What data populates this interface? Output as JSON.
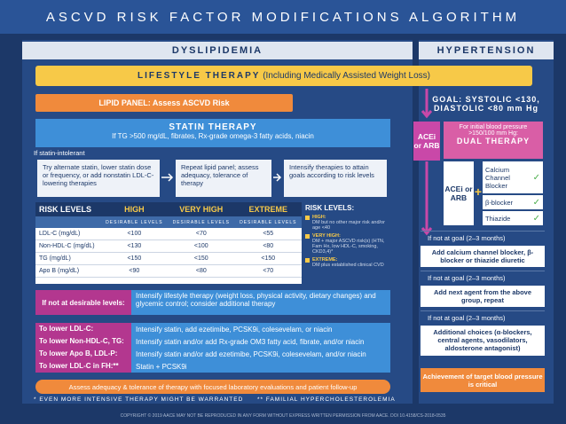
{
  "title": "ASCVD RISK FACTOR MODIFICATIONS ALGORITHM",
  "dyslipidemia": {
    "header": "DYSLIPIDEMIA",
    "lifestyle": {
      "label": "LIFESTYLE THERAPY",
      "note": "(Including Medically Assisted Weight Loss)"
    },
    "lipid_panel": "LIPID PANEL: Assess ASCVD Risk",
    "statin": {
      "label": "STATIN THERAPY",
      "note": "If TG >500 mg/dL, fibrates, Rx-grade omega-3 fatty acids, niacin"
    },
    "intolerant": "If statin-intolerant",
    "steps": [
      "Try alternate statin, lower statin dose or frequency, or add nonstatin LDL-C- lowering therapies",
      "Repeat lipid panel; assess adequacy, tolerance of therapy",
      "Intensify therapies to attain goals according to risk levels"
    ],
    "table": {
      "headers": [
        "RISK LEVELS",
        "HIGH",
        "VERY HIGH",
        "EXTREME"
      ],
      "subheaders": [
        "DESIRABLE LEVELS",
        "DESIRABLE LEVELS",
        "DESIRABLE LEVELS"
      ],
      "rows": [
        [
          "LDL-C (mg/dL)",
          "<100",
          "<70",
          "<55"
        ],
        [
          "Non-HDL-C (mg/dL)",
          "<130",
          "<100",
          "<80"
        ],
        [
          "TG (mg/dL)",
          "<150",
          "<150",
          "<150"
        ],
        [
          "Apo B (mg/dL)",
          "<90",
          "<80",
          "<70"
        ]
      ]
    },
    "legend": {
      "title": "RISK LEVELS:",
      "items": [
        {
          "name": "HIGH:",
          "text": "DM but no other major risk and/or age <40"
        },
        {
          "name": "VERY HIGH:",
          "text": "DM + major ASCVD risk(s) (HTN, Fam Hx, low HDL-C, smoking, CKD3,4)*"
        },
        {
          "name": "EXTREME:",
          "text": "DM plus established clinical CVD"
        }
      ]
    },
    "not_desirable": {
      "label": "If not at desirable levels:",
      "text": "Intensify lifestyle therapy (weight loss, physical activity, dietary changes) and glycemic control; consider additional therapy"
    },
    "lower": [
      {
        "label": "To lower LDL-C:",
        "text": "Intensify statin, add ezetimibe, PCSK9i, colesevelam, or niacin"
      },
      {
        "label": "To lower Non-HDL-C, TG:",
        "text": "Intensify statin and/or add Rx-grade OM3 fatty acid, fibrate, and/or niacin"
      },
      {
        "label": "To lower Apo B, LDL-P:",
        "text": "Intensify statin and/or add ezetimibe, PCSK9i, colesevelam, and/or niacin"
      },
      {
        "label": "To lower LDL-C in FH:**",
        "text": "Statin + PCSK9i"
      }
    ],
    "assess": "Assess adequacy & tolerance of therapy with focused laboratory evaluations and patient follow-up"
  },
  "hypertension": {
    "header": "HYPERTENSION",
    "goal": "GOAL: SYSTOLIC <130, DIASTOLIC <80 mm Hg",
    "acei": "ACEi or ARB",
    "initial": "For initial blood pressure >150/100 mm Hg:",
    "dual": "DUAL THERAPY",
    "dual_acei": "ACEi or ARB",
    "agents": [
      "Calcium Channel Blocker",
      "β-blocker",
      "Thiazide"
    ],
    "steps": [
      {
        "condition": "If not at goal (2–3 months)",
        "action": "Add calcium channel blocker, β-blocker or thiazide diuretic"
      },
      {
        "condition": "If not at goal (2–3 months)",
        "action": "Add next agent from the above group, repeat"
      },
      {
        "condition": "If not at goal (2–3 months)",
        "action": "Additional choices (α-blockers, central agents, vasodilators, aldosterone antagonist)"
      }
    ],
    "target": "Achievement of target blood pressure is critical"
  },
  "footnotes": [
    "* EVEN MORE INTENSIVE THERAPY MIGHT BE WARRANTED",
    "** FAMILIAL HYPERCHOLESTEROLEMIA"
  ],
  "copyright": "COPYRIGHT © 2019 AACE  MAY NOT BE REPRODUCED IN ANY FORM WITHOUT EXPRESS WRITTEN PERMISSION FROM AACE.  DOI 10.4158/CS-2018-0535"
}
